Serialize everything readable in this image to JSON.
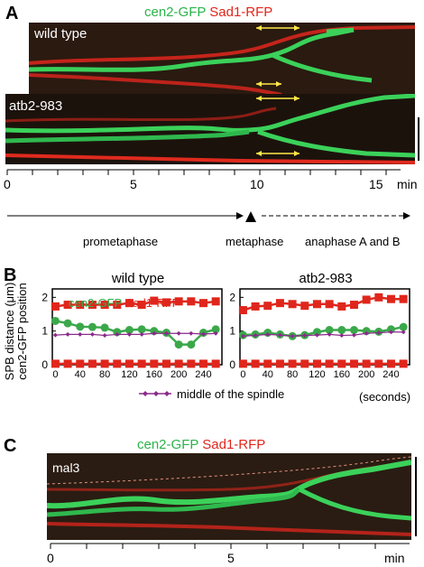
{
  "panel_a": {
    "letter": "A",
    "legend": {
      "green": "cen2-GFP",
      "red": "Sad1-RFP"
    },
    "kymo1_label": "wild type",
    "kymo2_label": "atb2-983",
    "timeline_ticks": [
      "0",
      "5",
      "10",
      "15"
    ],
    "timeline_unit": "min",
    "stages": [
      "prometaphase",
      "metaphase",
      "anaphase A and B"
    ]
  },
  "panel_b": {
    "letter": "B",
    "ylabel_line1": "SPB distance (μm)",
    "ylabel_line2": "cen2-GFP position",
    "legend_green": "cen2-GFP",
    "legend_red": "Sad1-RFP",
    "spindle_legend": "middle of the spindle",
    "xunit": "(seconds)"
  },
  "panel_c": {
    "letter": "C",
    "legend": {
      "green": "cen2-GFP",
      "red": "Sad1-RFP"
    },
    "kymo_label": "mal3",
    "ticks": [
      "0",
      "5"
    ],
    "unit": "min"
  },
  "chart_data": [
    {
      "type": "line",
      "title": "wild type",
      "x": [
        0,
        20,
        40,
        60,
        80,
        100,
        120,
        140,
        160,
        180,
        200,
        220,
        240,
        260
      ],
      "xticks": [
        "0",
        "40",
        "80",
        "120",
        "160",
        "200",
        "240"
      ],
      "yticks": [
        "0",
        "1",
        "2"
      ],
      "ylim": [
        0,
        2.25
      ],
      "xlim": [
        -5,
        270
      ],
      "series": [
        {
          "name": "Sad1-RFP",
          "color": "#e0261c",
          "marker": "square",
          "values": [
            1.73,
            1.78,
            1.78,
            1.78,
            1.78,
            1.78,
            1.83,
            1.78,
            1.9,
            1.85,
            1.88,
            1.88,
            1.83,
            1.88
          ]
        },
        {
          "name": "Sad1-RFP",
          "color": "#e0261c",
          "marker": "square",
          "values": [
            0.03,
            0.03,
            0.03,
            0.03,
            0.03,
            0.03,
            0.03,
            0.03,
            0.03,
            0.03,
            0.03,
            0.03,
            0.03,
            0.03
          ]
        },
        {
          "name": "cen2-GFP",
          "color": "#3aa84a",
          "marker": "circle",
          "values": [
            1.3,
            1.23,
            1.13,
            1.12,
            1.1,
            0.97,
            1.03,
            1.05,
            1.0,
            0.95,
            0.6,
            0.6,
            0.95,
            1.05
          ]
        },
        {
          "name": "middle of the spindle",
          "color": "#8a2a8a",
          "marker": "diamond",
          "values": [
            0.88,
            0.9,
            0.9,
            0.9,
            0.87,
            0.9,
            0.9,
            0.9,
            0.93,
            0.93,
            0.93,
            0.93,
            0.91,
            0.93
          ]
        }
      ]
    },
    {
      "type": "line",
      "title": "atb2-983",
      "x": [
        0,
        20,
        40,
        60,
        80,
        100,
        120,
        140,
        160,
        180,
        200,
        220,
        240,
        260
      ],
      "xticks": [
        "0",
        "40",
        "80",
        "120",
        "160",
        "200",
        "240"
      ],
      "yticks": [
        "0",
        "1",
        "2"
      ],
      "ylim": [
        0,
        2.25
      ],
      "xlim": [
        -5,
        270
      ],
      "series": [
        {
          "name": "Sad1-RFP",
          "color": "#e0261c",
          "marker": "square",
          "values": [
            1.62,
            1.73,
            1.75,
            1.83,
            1.8,
            1.75,
            1.8,
            1.8,
            1.73,
            1.78,
            1.93,
            2.0,
            1.95,
            1.95
          ]
        },
        {
          "name": "Sad1-RFP",
          "color": "#e0261c",
          "marker": "square",
          "values": [
            0.03,
            0.03,
            0.03,
            0.03,
            0.03,
            0.03,
            0.03,
            0.03,
            0.03,
            0.03,
            0.03,
            0.03,
            0.03,
            0.03
          ]
        },
        {
          "name": "cen2-GFP",
          "color": "#3aa84a",
          "marker": "circle",
          "values": [
            0.88,
            0.9,
            0.95,
            0.9,
            0.85,
            0.88,
            0.97,
            1.03,
            1.03,
            1.03,
            1.0,
            0.98,
            1.05,
            1.12
          ]
        },
        {
          "name": "middle of the spindle",
          "color": "#8a2a8a",
          "marker": "diamond",
          "values": [
            0.85,
            0.87,
            0.9,
            0.88,
            0.85,
            0.87,
            0.88,
            0.9,
            0.87,
            0.88,
            0.93,
            0.95,
            0.97,
            0.97
          ]
        }
      ]
    }
  ]
}
